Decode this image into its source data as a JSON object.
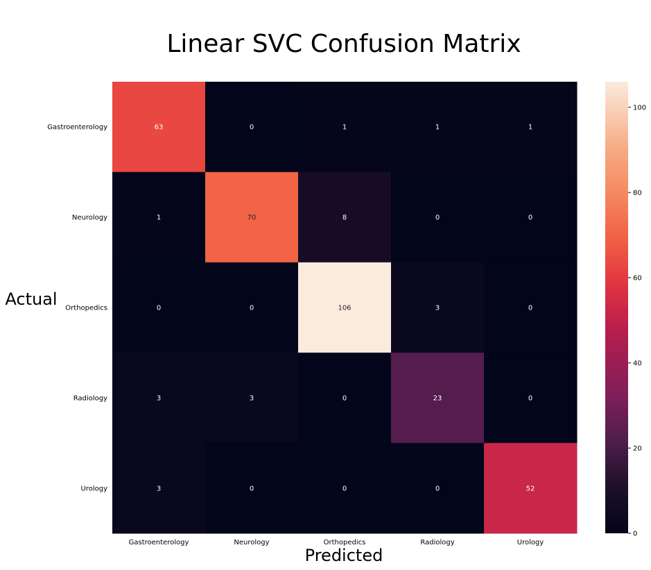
{
  "chart_data": {
    "type": "heatmap",
    "title": "Linear SVC Confusion Matrix",
    "xlabel": "Predicted",
    "ylabel": "Actual",
    "x_categories": [
      "Gastroenterology",
      "Neurology",
      "Orthopedics",
      "Radiology",
      "Urology"
    ],
    "y_categories": [
      "Gastroenterology",
      "Neurology",
      "Orthopedics",
      "Radiology",
      "Urology"
    ],
    "matrix": [
      [
        63,
        0,
        1,
        1,
        1
      ],
      [
        1,
        70,
        8,
        0,
        0
      ],
      [
        0,
        0,
        106,
        3,
        0
      ],
      [
        3,
        3,
        0,
        23,
        0
      ],
      [
        3,
        0,
        0,
        0,
        52
      ]
    ],
    "colorbar": {
      "vmin": 0,
      "vmax": 106,
      "ticks": [
        0,
        20,
        40,
        60,
        80,
        100
      ],
      "colormap": "rocket"
    },
    "grid": false
  }
}
